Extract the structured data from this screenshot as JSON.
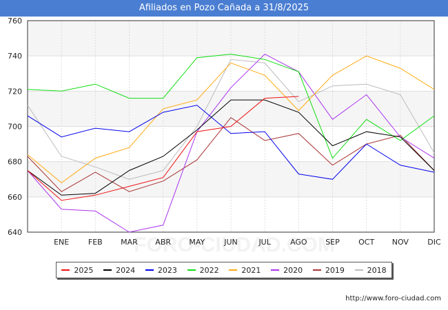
{
  "chart_data": {
    "type": "line",
    "title": "Afiliados en Pozo Cañada a 31/8/2025",
    "categories": [
      "",
      "ENE",
      "FEB",
      "MAR",
      "ABR",
      "MAY",
      "JUN",
      "JUL",
      "AGO",
      "SEP",
      "OCT",
      "NOV",
      "DIC"
    ],
    "ylim": [
      640,
      760
    ],
    "yticks": [
      640,
      660,
      680,
      700,
      720,
      740,
      760
    ],
    "grid": true,
    "legend_position": "bottom",
    "series": [
      {
        "name": "2025",
        "color": "#ee1111",
        "values": [
          675,
          658,
          661,
          666,
          671,
          697,
          700,
          716,
          717,
          null,
          null,
          null,
          null
        ]
      },
      {
        "name": "2024",
        "color": "#000000",
        "values": [
          675,
          661,
          662,
          675,
          683,
          698,
          715,
          715,
          708,
          689,
          697,
          694,
          675
        ]
      },
      {
        "name": "2023",
        "color": "#0000ee",
        "values": [
          706,
          694,
          699,
          697,
          708,
          712,
          696,
          697,
          673,
          670,
          690,
          678,
          674
        ]
      },
      {
        "name": "2022",
        "color": "#11dd11",
        "values": [
          721,
          720,
          724,
          716,
          716,
          739,
          741,
          738,
          731,
          682,
          704,
          692,
          706
        ]
      },
      {
        "name": "2021",
        "color": "#ffaa11",
        "values": [
          684,
          668,
          682,
          688,
          710,
          715,
          736,
          729,
          709,
          729,
          740,
          733,
          721
        ]
      },
      {
        "name": "2020",
        "color": "#aa33ee",
        "values": [
          675,
          653,
          652,
          640,
          644,
          697,
          722,
          741,
          731,
          704,
          718,
          694,
          682
        ]
      },
      {
        "name": "2019",
        "color": "#aa3333",
        "values": [
          683,
          663,
          674,
          663,
          669,
          681,
          705,
          692,
          696,
          678,
          690,
          695,
          675
        ]
      },
      {
        "name": "2018",
        "color": "#bbbbbb",
        "values": [
          712,
          683,
          677,
          670,
          675,
          700,
          738,
          736,
          714,
          723,
          724,
          718,
          685
        ]
      }
    ]
  },
  "watermark": "http://www.foro-ciudad.com",
  "background_watermark": "FORO-CIUDAD.COM"
}
